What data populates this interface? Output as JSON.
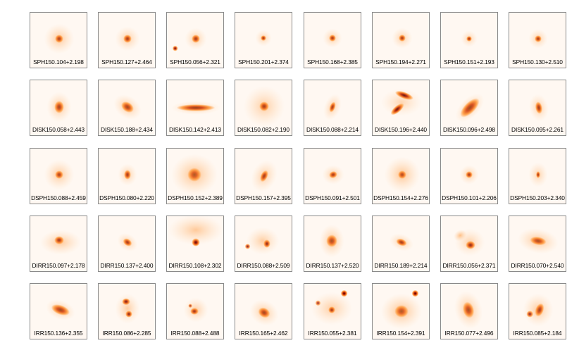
{
  "title": "",
  "colors": {
    "background": "#fff8f2",
    "core": "#3a0000",
    "halo": "#ff8a1e"
  },
  "rows": [
    {
      "class": "SPH",
      "labels": [
        "SPH150.104+2.198",
        "SPH150.127+2.464",
        "SPH150.056+2.321",
        "SPH150.201+2.374",
        "SPH150.168+2.385",
        "SPH150.194+2.271",
        "SPH150.151+2.193",
        "SPH150.130+2.510"
      ]
    },
    {
      "class": "DISK",
      "labels": [
        "DISK150.058+2.443",
        "DISK150.188+2.434",
        "DISK150.142+2.413",
        "DISK150.082+2.190",
        "DISK150.088+2.214",
        "DISK150.196+2.440",
        "DISK150.096+2.498",
        "DISK150.095+2.261"
      ]
    },
    {
      "class": "DSPH",
      "labels": [
        "DSPH150.088+2.459",
        "DSPH150.080+2.220",
        "DSPH150.152+2.389",
        "DSPH150.157+2.395",
        "DSPH150.091+2.501",
        "DSPH150.154+2.276",
        "DSPH150.101+2.206",
        "DSPH150.203+2.340"
      ]
    },
    {
      "class": "DIRR",
      "labels": [
        "DIRR150.097+2.178",
        "DIRR150.137+2.400",
        "DIRR150.108+2.302",
        "DIRR150.088+2.509",
        "DIRR150.137+2.520",
        "DIRR150.189+2.214",
        "DIRR150.056+2.371",
        "DIRR150.070+2.540"
      ]
    },
    {
      "class": "IRR",
      "labels": [
        "IRR150.136+2.355",
        "IRR150.086+2.285",
        "IRR150.088+2.488",
        "IRR150.165+2.462",
        "IRR150.055+2.381",
        "IRR150.154+2.391",
        "IRR150.077+2.496",
        "IRR150.085+2.184"
      ]
    }
  ]
}
